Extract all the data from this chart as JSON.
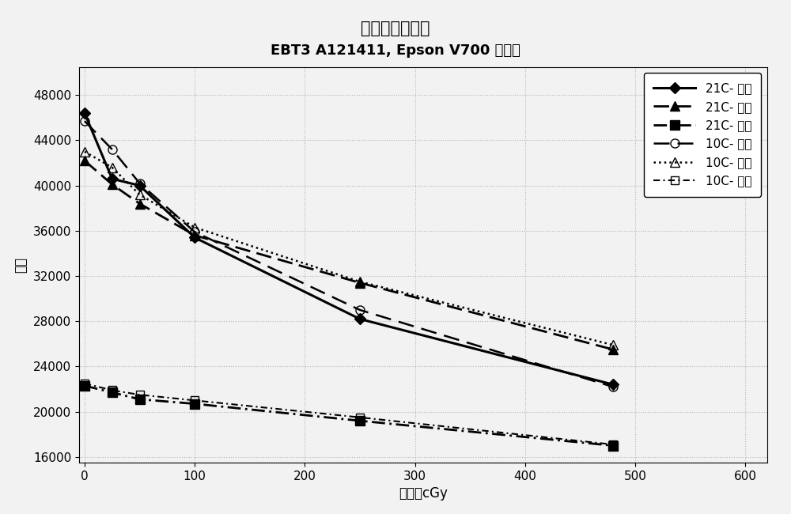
{
  "title_line1": "扫描温度的影响",
  "title_line2": "EBT3 A121411, Epson V700 扫描器",
  "xlabel": "剂量，cGy",
  "ylabel": "响应",
  "xlim": [
    -5,
    620
  ],
  "ylim": [
    15500,
    50500
  ],
  "xticks": [
    0,
    100,
    200,
    300,
    400,
    500,
    600
  ],
  "yticks": [
    16000,
    20000,
    24000,
    28000,
    32000,
    36000,
    40000,
    44000,
    48000
  ],
  "series": [
    {
      "label": "21C- 红色",
      "x": [
        0,
        25,
        50,
        100,
        250,
        480
      ],
      "y": [
        46400,
        40600,
        40000,
        35400,
        28200,
        22400
      ],
      "linestyle": "-",
      "marker": "D",
      "markersize": 7,
      "linewidth": 2.2,
      "color": "black",
      "fillstyle": "full",
      "dashes": null
    },
    {
      "label": "21C- 绿色",
      "x": [
        0,
        25,
        50,
        100,
        250,
        480
      ],
      "y": [
        42200,
        40100,
        38400,
        35600,
        31400,
        25500
      ],
      "linestyle": "--",
      "marker": "^",
      "markersize": 9,
      "linewidth": 2.0,
      "color": "black",
      "fillstyle": "full",
      "dashes": [
        7,
        3
      ]
    },
    {
      "label": "21C- 蓝色",
      "x": [
        0,
        25,
        50,
        100,
        250,
        480
      ],
      "y": [
        22300,
        21700,
        21100,
        20700,
        19200,
        17000
      ],
      "linestyle": "-.",
      "marker": "s",
      "markersize": 8,
      "linewidth": 2.0,
      "color": "black",
      "fillstyle": "full",
      "dashes": [
        6,
        2,
        1,
        2
      ]
    },
    {
      "label": "10C- 红色",
      "x": [
        0,
        25,
        50,
        100,
        250,
        480
      ],
      "y": [
        45700,
        43200,
        40200,
        35900,
        29000,
        22200
      ],
      "linestyle": "--",
      "marker": "o",
      "markersize": 8,
      "linewidth": 1.8,
      "color": "black",
      "fillstyle": "none",
      "dashes": [
        8,
        4
      ]
    },
    {
      "label": "10C- 绿色",
      "x": [
        0,
        25,
        50,
        100,
        250,
        480
      ],
      "y": [
        43000,
        41600,
        39200,
        36300,
        31500,
        25900
      ],
      "linestyle": ":",
      "marker": "^",
      "markersize": 9,
      "linewidth": 1.8,
      "color": "black",
      "fillstyle": "none",
      "dashes": null
    },
    {
      "label": "10C- 蓝色",
      "x": [
        0,
        25,
        50,
        100,
        250,
        480
      ],
      "y": [
        22500,
        21900,
        21500,
        21000,
        19500,
        17100
      ],
      "linestyle": "-.",
      "marker": "s",
      "markersize": 7,
      "linewidth": 1.5,
      "color": "black",
      "fillstyle": "none",
      "dashes": [
        4,
        2,
        1,
        2
      ]
    }
  ],
  "background_color": "#f2f2f2",
  "grid_color": "#b0b0b0",
  "grid_linestyle": ":",
  "legend_fontsize": 11,
  "title1_fontsize": 15,
  "title2_fontsize": 13,
  "axis_label_fontsize": 12,
  "tick_fontsize": 11
}
